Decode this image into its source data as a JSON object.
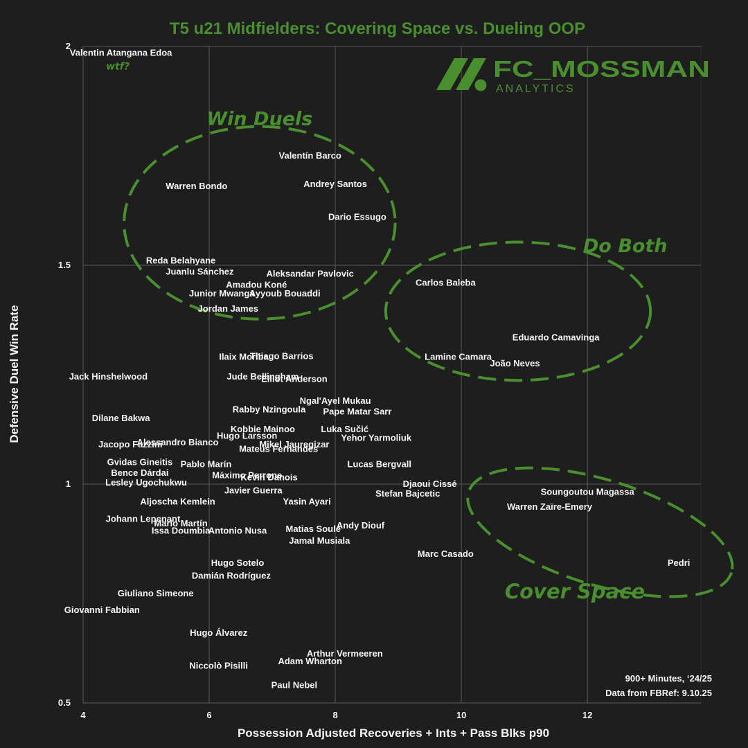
{
  "title": "T5 u21 Midfielders: Covering Space vs. Dueling OOP",
  "brand": {
    "name": "FC_MOSSMAN",
    "sub": "ANALYTICS"
  },
  "footnote": {
    "line1": "900+ Minutes, ‘24/25",
    "line2": "Data from FBRef: 9.10.25"
  },
  "colors": {
    "background": "#1e1e1e",
    "accent": "#4a8f2f",
    "text": "#f5f5f5",
    "grid": "#5a5a5a"
  },
  "chart_data": {
    "type": "scatter",
    "title": "T5 u21 Midfielders: Covering Space vs. Dueling OOP",
    "xlabel": "Possession Adjusted Recoveries + Ints + Pass Blks p90",
    "ylabel": "Defensive Duel Win Rate",
    "xlim": [
      4,
      13.8
    ],
    "ylim": [
      0.5,
      2
    ],
    "xticks": [
      4,
      6,
      8,
      10,
      12
    ],
    "yticks": [
      0.5,
      1,
      1.5,
      2
    ],
    "ytick_labels": [
      "0.5",
      "1",
      "1.5",
      "2"
    ],
    "grid": true,
    "points": [
      {
        "label": "Valentin Atangana Edoa",
        "x": 4.6,
        "y": 1.985
      },
      {
        "label": "Valentín Barco",
        "x": 7.6,
        "y": 1.75
      },
      {
        "label": "Warren Bondo",
        "x": 5.8,
        "y": 1.68
      },
      {
        "label": "Andrey Santos",
        "x": 8.0,
        "y": 1.685
      },
      {
        "label": "Dario Essugo",
        "x": 8.35,
        "y": 1.61
      },
      {
        "label": "Reda Belahyane",
        "x": 5.55,
        "y": 1.51
      },
      {
        "label": "Juanlu Sánchez",
        "x": 5.85,
        "y": 1.485
      },
      {
        "label": "Aleksandar Pavlovic",
        "x": 7.6,
        "y": 1.48
      },
      {
        "label": "Amadou Koné",
        "x": 6.75,
        "y": 1.455
      },
      {
        "label": "Junior Mwanga",
        "x": 6.2,
        "y": 1.435
      },
      {
        "label": "Ayyoub Bouaddi",
        "x": 7.2,
        "y": 1.435
      },
      {
        "label": "Jordan James",
        "x": 6.3,
        "y": 1.4
      },
      {
        "label": "Carlos Baleba",
        "x": 9.75,
        "y": 1.46
      },
      {
        "label": "Eduardo Camavinga",
        "x": 11.5,
        "y": 1.335
      },
      {
        "label": "Lamine Camara",
        "x": 9.95,
        "y": 1.29
      },
      {
        "label": "João Neves",
        "x": 10.85,
        "y": 1.275
      },
      {
        "label": "Ilaix Moriba",
        "x": 6.55,
        "y": 1.29
      },
      {
        "label": "Thiago Barrios",
        "x": 7.15,
        "y": 1.292
      },
      {
        "label": "Jack Hinshelwood",
        "x": 4.4,
        "y": 1.245
      },
      {
        "label": "Jude Bellingham",
        "x": 6.85,
        "y": 1.245
      },
      {
        "label": "Elliot Anderson",
        "x": 7.35,
        "y": 1.24
      },
      {
        "label": "Ngal'Ayel Mukau",
        "x": 8.0,
        "y": 1.19
      },
      {
        "label": "Rabby Nzingoula",
        "x": 6.95,
        "y": 1.17
      },
      {
        "label": "Pape Matar Sarr",
        "x": 8.35,
        "y": 1.165
      },
      {
        "label": "Dilane Bakwa",
        "x": 4.6,
        "y": 1.15
      },
      {
        "label": "Kobbie Mainoo",
        "x": 6.85,
        "y": 1.125
      },
      {
        "label": "Luka Sučić",
        "x": 8.15,
        "y": 1.125
      },
      {
        "label": "Hugo Larsson",
        "x": 6.6,
        "y": 1.11
      },
      {
        "label": "Yehor Yarmoliuk",
        "x": 8.65,
        "y": 1.105
      },
      {
        "label": "Alessandro Bianco",
        "x": 5.5,
        "y": 1.095
      },
      {
        "label": "Jacopo Fazzini",
        "x": 4.75,
        "y": 1.09
      },
      {
        "label": "Mikel Jauregizar",
        "x": 7.35,
        "y": 1.09
      },
      {
        "label": "Mateus Fernandes",
        "x": 7.1,
        "y": 1.08
      },
      {
        "label": "Gvidas Gineitis",
        "x": 4.9,
        "y": 1.05
      },
      {
        "label": "Pablo Marín",
        "x": 5.95,
        "y": 1.045
      },
      {
        "label": "Lucas Bergvall",
        "x": 8.7,
        "y": 1.045
      },
      {
        "label": "Bence Dárdai",
        "x": 4.9,
        "y": 1.025
      },
      {
        "label": "Máximo Perrone",
        "x": 6.6,
        "y": 1.02
      },
      {
        "label": "Kevin Danois",
        "x": 6.95,
        "y": 1.015
      },
      {
        "label": "Lesley Ugochukwu",
        "x": 5.0,
        "y": 1.003
      },
      {
        "label": "Djaoui Cissé",
        "x": 9.5,
        "y": 1.0
      },
      {
        "label": "Javier Guerra",
        "x": 6.7,
        "y": 0.985
      },
      {
        "label": "Stefan Bajcetic",
        "x": 9.15,
        "y": 0.978
      },
      {
        "label": "Soungoutou Magassa",
        "x": 12.0,
        "y": 0.982
      },
      {
        "label": "Aljoscha Kemlein",
        "x": 5.5,
        "y": 0.96
      },
      {
        "label": "Yasin Ayari",
        "x": 7.55,
        "y": 0.96
      },
      {
        "label": "Warren Zaïre-Emery",
        "x": 11.4,
        "y": 0.948
      },
      {
        "label": "Johann Lepenant",
        "x": 4.95,
        "y": 0.92
      },
      {
        "label": "Mario Martín",
        "x": 5.55,
        "y": 0.91
      },
      {
        "label": "Andy Diouf",
        "x": 8.4,
        "y": 0.905
      },
      {
        "label": "Matias Soulé",
        "x": 7.65,
        "y": 0.897
      },
      {
        "label": "Issa Doumbia",
        "x": 5.55,
        "y": 0.893
      },
      {
        "label": "Antonio Nusa",
        "x": 6.45,
        "y": 0.893
      },
      {
        "label": "Jamal Musiala",
        "x": 7.75,
        "y": 0.87
      },
      {
        "label": "Marc Casado",
        "x": 9.75,
        "y": 0.84
      },
      {
        "label": "Pedri",
        "x": 13.45,
        "y": 0.82
      },
      {
        "label": "Hugo Sotelo",
        "x": 6.45,
        "y": 0.82
      },
      {
        "label": "Damián Rodríguez",
        "x": 6.35,
        "y": 0.79
      },
      {
        "label": "Giuliano Simeone",
        "x": 5.15,
        "y": 0.75
      },
      {
        "label": "Giovanni Fabbian",
        "x": 4.3,
        "y": 0.712
      },
      {
        "label": "Hugo Álvarez",
        "x": 6.15,
        "y": 0.66
      },
      {
        "label": "Arthur Vermeeren",
        "x": 8.15,
        "y": 0.612
      },
      {
        "label": "Adam Wharton",
        "x": 7.6,
        "y": 0.595
      },
      {
        "label": "Niccolò Pisilli",
        "x": 6.15,
        "y": 0.585
      },
      {
        "label": "Paul Nebel",
        "x": 7.35,
        "y": 0.54
      }
    ],
    "annotations": [
      {
        "text": "wtf?",
        "x": 4.55,
        "y": 1.955
      },
      {
        "text": "Win Duels",
        "x": 6.8,
        "y": 1.835
      },
      {
        "text": "Do Both",
        "x": 12.6,
        "y": 1.545
      },
      {
        "text": "Cover Space",
        "x": 11.8,
        "y": 0.755
      }
    ],
    "regions": [
      {
        "label": "Win Duels",
        "cx": 6.8,
        "cy": 1.597,
        "rx": 2.15,
        "ry": 0.22
      },
      {
        "label": "Do Both",
        "cx": 10.9,
        "cy": 1.395,
        "rx": 2.1,
        "ry": 0.158
      },
      {
        "label": "Cover Space",
        "cx": 12.2,
        "cy": 0.89,
        "rx": 2.18,
        "ry": 0.12
      }
    ]
  }
}
